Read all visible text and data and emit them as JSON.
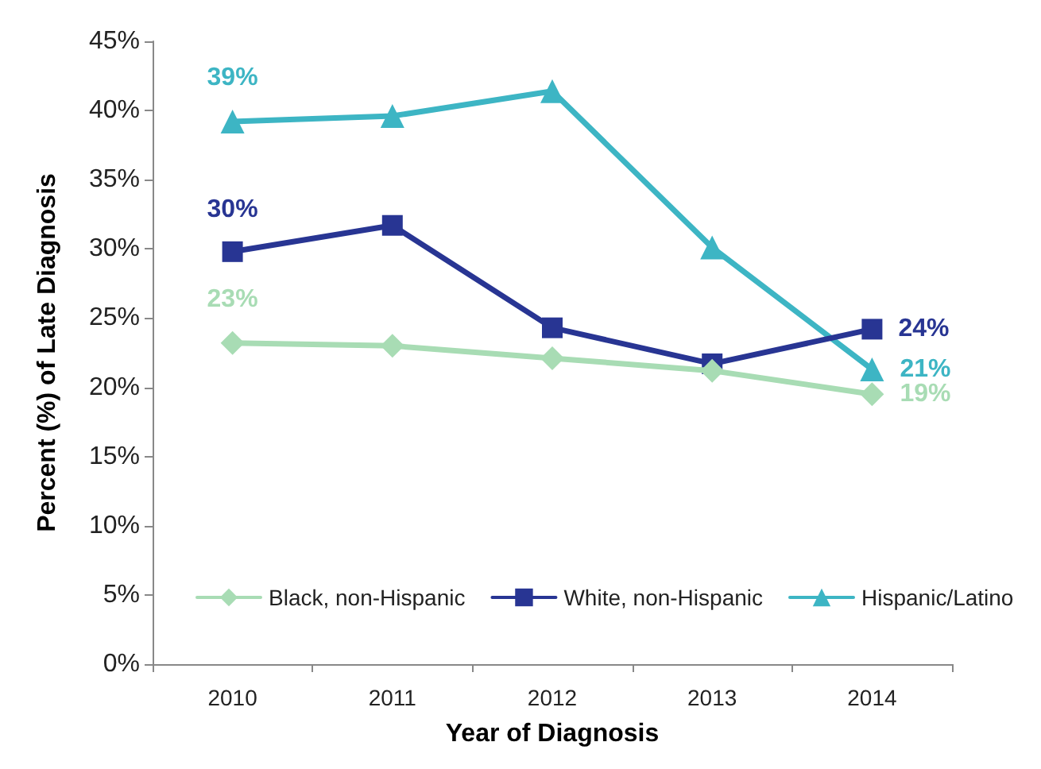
{
  "chart_data": {
    "type": "line",
    "xlabel": "Year of Diagnosis",
    "ylabel": "Percent (%) of Late Diagnosis",
    "categories": [
      "2010",
      "2011",
      "2012",
      "2013",
      "2014"
    ],
    "series": [
      {
        "name": "Black, non-Hispanic",
        "color": "#a8dcb4",
        "marker": "diamond",
        "values": [
          23.2,
          23.0,
          22.1,
          21.2,
          19.5
        ],
        "value_labels": [
          "23%",
          null,
          null,
          null,
          "19%"
        ]
      },
      {
        "name": "White, non-Hispanic",
        "color": "#283593",
        "marker": "square",
        "values": [
          29.8,
          31.7,
          24.3,
          21.7,
          24.2
        ],
        "value_labels": [
          "30%",
          null,
          null,
          null,
          "24%"
        ]
      },
      {
        "name": "Hispanic/Latino",
        "color": "#3db5c4",
        "marker": "triangle",
        "values": [
          39.2,
          39.6,
          41.4,
          30.1,
          21.3
        ],
        "value_labels": [
          "39%",
          null,
          null,
          null,
          "21%"
        ]
      }
    ],
    "ylim": [
      0,
      45
    ],
    "yticks": [
      {
        "value": 0,
        "label": "0%"
      },
      {
        "value": 5,
        "label": "5%"
      },
      {
        "value": 10,
        "label": "10%"
      },
      {
        "value": 15,
        "label": "15%"
      },
      {
        "value": 20,
        "label": "20%"
      },
      {
        "value": 25,
        "label": "25%"
      },
      {
        "value": 30,
        "label": "30%"
      },
      {
        "value": 35,
        "label": "35%"
      },
      {
        "value": 40,
        "label": "40%"
      },
      {
        "value": 45,
        "label": "45%"
      }
    ],
    "grid": false,
    "legend": "bottom",
    "line_style": "solid"
  }
}
